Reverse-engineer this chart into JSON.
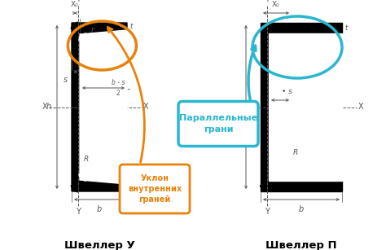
{
  "title_left": "Швеллер У",
  "title_right": "Швеллер П",
  "label_orange": "Уклон\nвнутренних\nграней",
  "label_cyan": "Параллельные\nграни",
  "orange_color": "#E8820A",
  "cyan_color": "#29B6D0",
  "bg_color": "#FFFFFF",
  "dim_color": "#555555",
  "figsize": [
    4.74,
    3.07
  ],
  "dpi": 100
}
